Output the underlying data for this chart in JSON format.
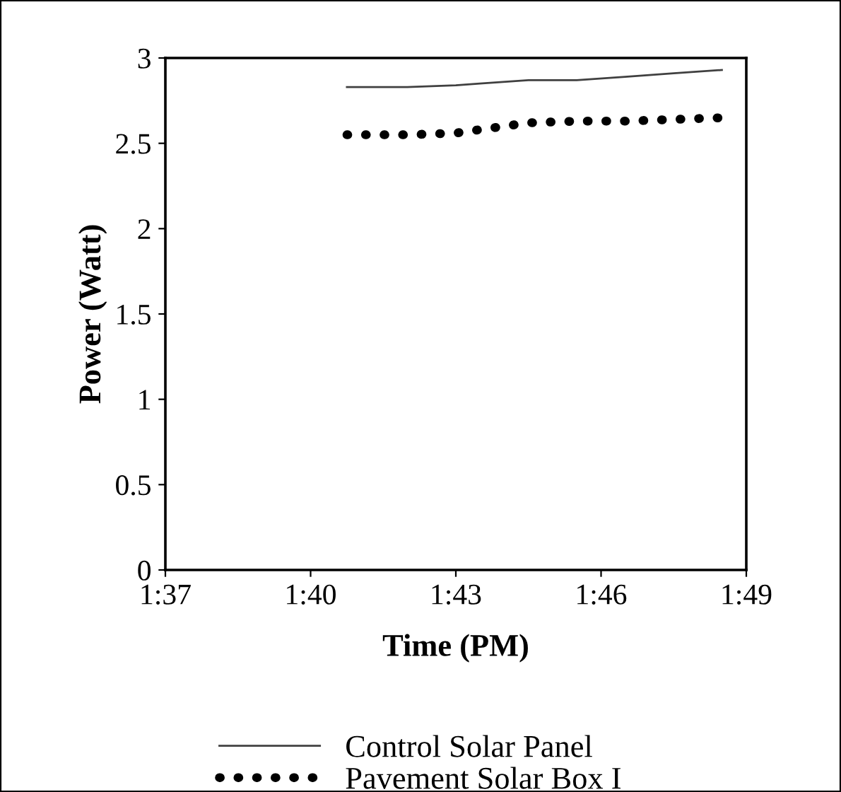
{
  "chart_data": {
    "type": "line",
    "xlabel": "Time (PM)",
    "ylabel": "Power (Watt)",
    "series": [
      {
        "name": "Control Solar Panel",
        "color": "#404040",
        "line_style": "solid",
        "x": [
          1.6792,
          1.7,
          1.7167,
          1.725,
          1.7417,
          1.7583,
          1.775,
          1.7917,
          1.8083
        ],
        "values": [
          2.83,
          2.83,
          2.84,
          2.85,
          2.87,
          2.87,
          2.89,
          2.91,
          2.93
        ]
      },
      {
        "name": "Pavement Solar Box I",
        "color": "#000000",
        "line_style": "dotted",
        "x": [
          1.6792,
          1.7,
          1.7167,
          1.725,
          1.7417,
          1.7583,
          1.775,
          1.7917,
          1.8083
        ],
        "values": [
          2.55,
          2.55,
          2.56,
          2.58,
          2.62,
          2.63,
          2.63,
          2.64,
          2.65
        ]
      }
    ],
    "xlim": [
      1.6167,
      1.8167
    ],
    "xticks": [
      {
        "value": 1.6167,
        "label": "1:37"
      },
      {
        "value": 1.6667,
        "label": "1:40"
      },
      {
        "value": 1.7167,
        "label": "1:43"
      },
      {
        "value": 1.7667,
        "label": "1:46"
      },
      {
        "value": 1.8167,
        "label": "1:49"
      }
    ],
    "ylim": [
      0,
      3
    ],
    "yticks": [
      0,
      0.5,
      1,
      1.5,
      2,
      2.5,
      3
    ],
    "grid": false,
    "legend": "bottom"
  }
}
